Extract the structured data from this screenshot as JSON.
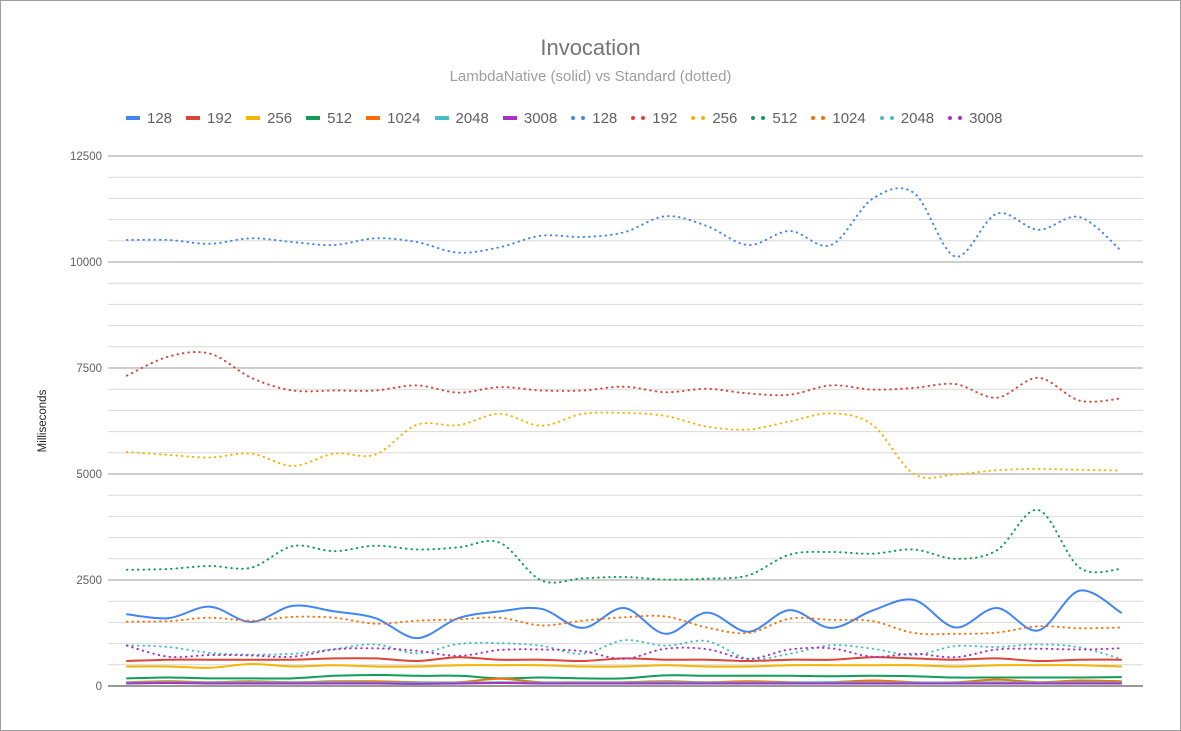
{
  "chart_data": {
    "type": "line",
    "title": "Invocation",
    "subtitle": "LambdaNative (solid) vs Standard (dotted)",
    "ylabel": "Milliseconds",
    "xlabel": "",
    "ylim": [
      0,
      12500
    ],
    "yticks": [
      0,
      2500,
      5000,
      7500,
      10000,
      12500
    ],
    "grid": true,
    "legend_position": "top",
    "series": [
      {
        "name": "128",
        "style": "solid",
        "color": "#4285f4",
        "values": [
          1690,
          1600,
          1870,
          1510,
          1890,
          1760,
          1600,
          1130,
          1600,
          1760,
          1820,
          1370,
          1840,
          1230,
          1730,
          1280,
          1790,
          1370,
          1780,
          2030,
          1380,
          1840,
          1310,
          2250,
          1730
        ]
      },
      {
        "name": "192",
        "style": "solid",
        "color": "#db4437",
        "values": [
          590,
          620,
          620,
          620,
          620,
          650,
          650,
          590,
          680,
          620,
          620,
          590,
          650,
          620,
          620,
          590,
          620,
          620,
          680,
          650,
          620,
          650,
          590,
          620,
          620
        ]
      },
      {
        "name": "256",
        "style": "solid",
        "color": "#f4b400",
        "values": [
          460,
          460,
          430,
          520,
          460,
          490,
          460,
          460,
          490,
          490,
          490,
          460,
          460,
          490,
          460,
          460,
          490,
          490,
          490,
          490,
          460,
          490,
          490,
          490,
          460
        ]
      },
      {
        "name": "512",
        "style": "solid",
        "color": "#0f9d58",
        "values": [
          180,
          200,
          180,
          180,
          180,
          240,
          260,
          240,
          240,
          180,
          200,
          180,
          180,
          250,
          240,
          240,
          240,
          230,
          240,
          230,
          200,
          200,
          200,
          200,
          210
        ]
      },
      {
        "name": "1024",
        "style": "solid",
        "color": "#ff6d00",
        "values": [
          90,
          110,
          90,
          110,
          90,
          110,
          110,
          90,
          90,
          170,
          90,
          90,
          90,
          110,
          90,
          110,
          90,
          90,
          130,
          90,
          90,
          150,
          90,
          130,
          110
        ]
      },
      {
        "name": "2048",
        "style": "solid",
        "color": "#46bdc6",
        "values": [
          80,
          90,
          80,
          90,
          80,
          90,
          80,
          80,
          80,
          90,
          80,
          80,
          80,
          90,
          80,
          80,
          80,
          90,
          80,
          80,
          80,
          90,
          80,
          90,
          80
        ]
      },
      {
        "name": "3008",
        "style": "solid",
        "color": "#ab30c4",
        "values": [
          60,
          70,
          60,
          60,
          60,
          60,
          60,
          50,
          60,
          70,
          60,
          60,
          60,
          60,
          60,
          60,
          60,
          60,
          60,
          60,
          60,
          60,
          60,
          60,
          60
        ]
      },
      {
        "name": "128",
        "style": "dotted",
        "color": "#4285f4",
        "values": [
          10520,
          10520,
          10430,
          10560,
          10470,
          10400,
          10560,
          10470,
          10220,
          10350,
          10620,
          10590,
          10700,
          11080,
          10850,
          10400,
          10730,
          10400,
          11490,
          11630,
          10130,
          11140,
          10760,
          11060,
          10270
        ]
      },
      {
        "name": "192",
        "style": "dotted",
        "color": "#db4437",
        "values": [
          7320,
          7770,
          7840,
          7270,
          6970,
          6970,
          6970,
          7090,
          6920,
          7050,
          6970,
          6970,
          7060,
          6930,
          7010,
          6900,
          6870,
          7090,
          6990,
          7030,
          7120,
          6800,
          7270,
          6730,
          6780
        ]
      },
      {
        "name": "256",
        "style": "dotted",
        "color": "#f4b400",
        "values": [
          5520,
          5450,
          5390,
          5480,
          5190,
          5480,
          5460,
          6160,
          6150,
          6420,
          6140,
          6420,
          6440,
          6370,
          6120,
          6050,
          6240,
          6430,
          6160,
          5000,
          4990,
          5090,
          5120,
          5100,
          5080
        ]
      },
      {
        "name": "512",
        "style": "dotted",
        "color": "#0f9d58",
        "values": [
          2740,
          2760,
          2830,
          2790,
          3300,
          3180,
          3310,
          3220,
          3270,
          3380,
          2490,
          2540,
          2570,
          2510,
          2530,
          2610,
          3100,
          3160,
          3120,
          3220,
          3000,
          3200,
          4150,
          2790,
          2760
        ]
      },
      {
        "name": "1024",
        "style": "dotted",
        "color": "#ff6d00",
        "values": [
          1520,
          1530,
          1610,
          1540,
          1630,
          1610,
          1470,
          1540,
          1570,
          1610,
          1430,
          1540,
          1620,
          1640,
          1380,
          1250,
          1590,
          1560,
          1530,
          1250,
          1230,
          1260,
          1410,
          1360,
          1380
        ]
      },
      {
        "name": "2048",
        "style": "dotted",
        "color": "#46bdc6",
        "values": [
          960,
          920,
          780,
          740,
          760,
          870,
          980,
          770,
          990,
          1010,
          950,
          760,
          1080,
          950,
          1060,
          640,
          760,
          960,
          880,
          730,
          940,
          920,
          980,
          910,
          640
        ]
      },
      {
        "name": "3008",
        "style": "dotted",
        "color": "#ab30c4",
        "values": [
          950,
          690,
          730,
          720,
          690,
          860,
          890,
          830,
          710,
          850,
          860,
          820,
          640,
          880,
          870,
          640,
          860,
          890,
          690,
          760,
          680,
          860,
          880,
          860,
          890
        ]
      }
    ]
  }
}
